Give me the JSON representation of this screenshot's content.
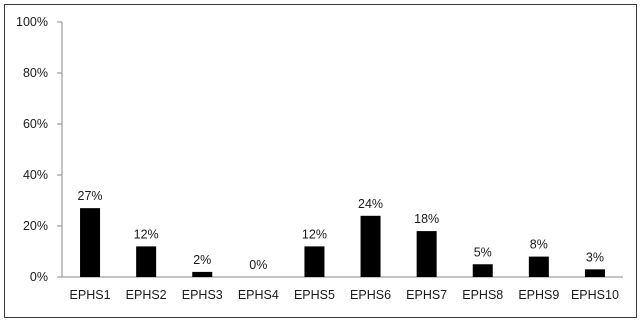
{
  "chart_data": {
    "type": "bar",
    "categories": [
      "EPHS1",
      "EPHS2",
      "EPHS3",
      "EPHS4",
      "EPHS5",
      "EPHS6",
      "EPHS7",
      "EPHS8",
      "EPHS9",
      "EPHS10"
    ],
    "values": [
      27,
      12,
      2,
      0,
      12,
      24,
      18,
      5,
      8,
      3
    ],
    "data_labels": [
      "27%",
      "12%",
      "2%",
      "0%",
      "12%",
      "24%",
      "18%",
      "5%",
      "8%",
      "3%"
    ],
    "y_ticks": [
      "0%",
      "20%",
      "40%",
      "60%",
      "80%",
      "100%"
    ],
    "ylim": [
      0,
      100
    ],
    "grid": false,
    "legend": "none",
    "bar_color": "#000000"
  }
}
